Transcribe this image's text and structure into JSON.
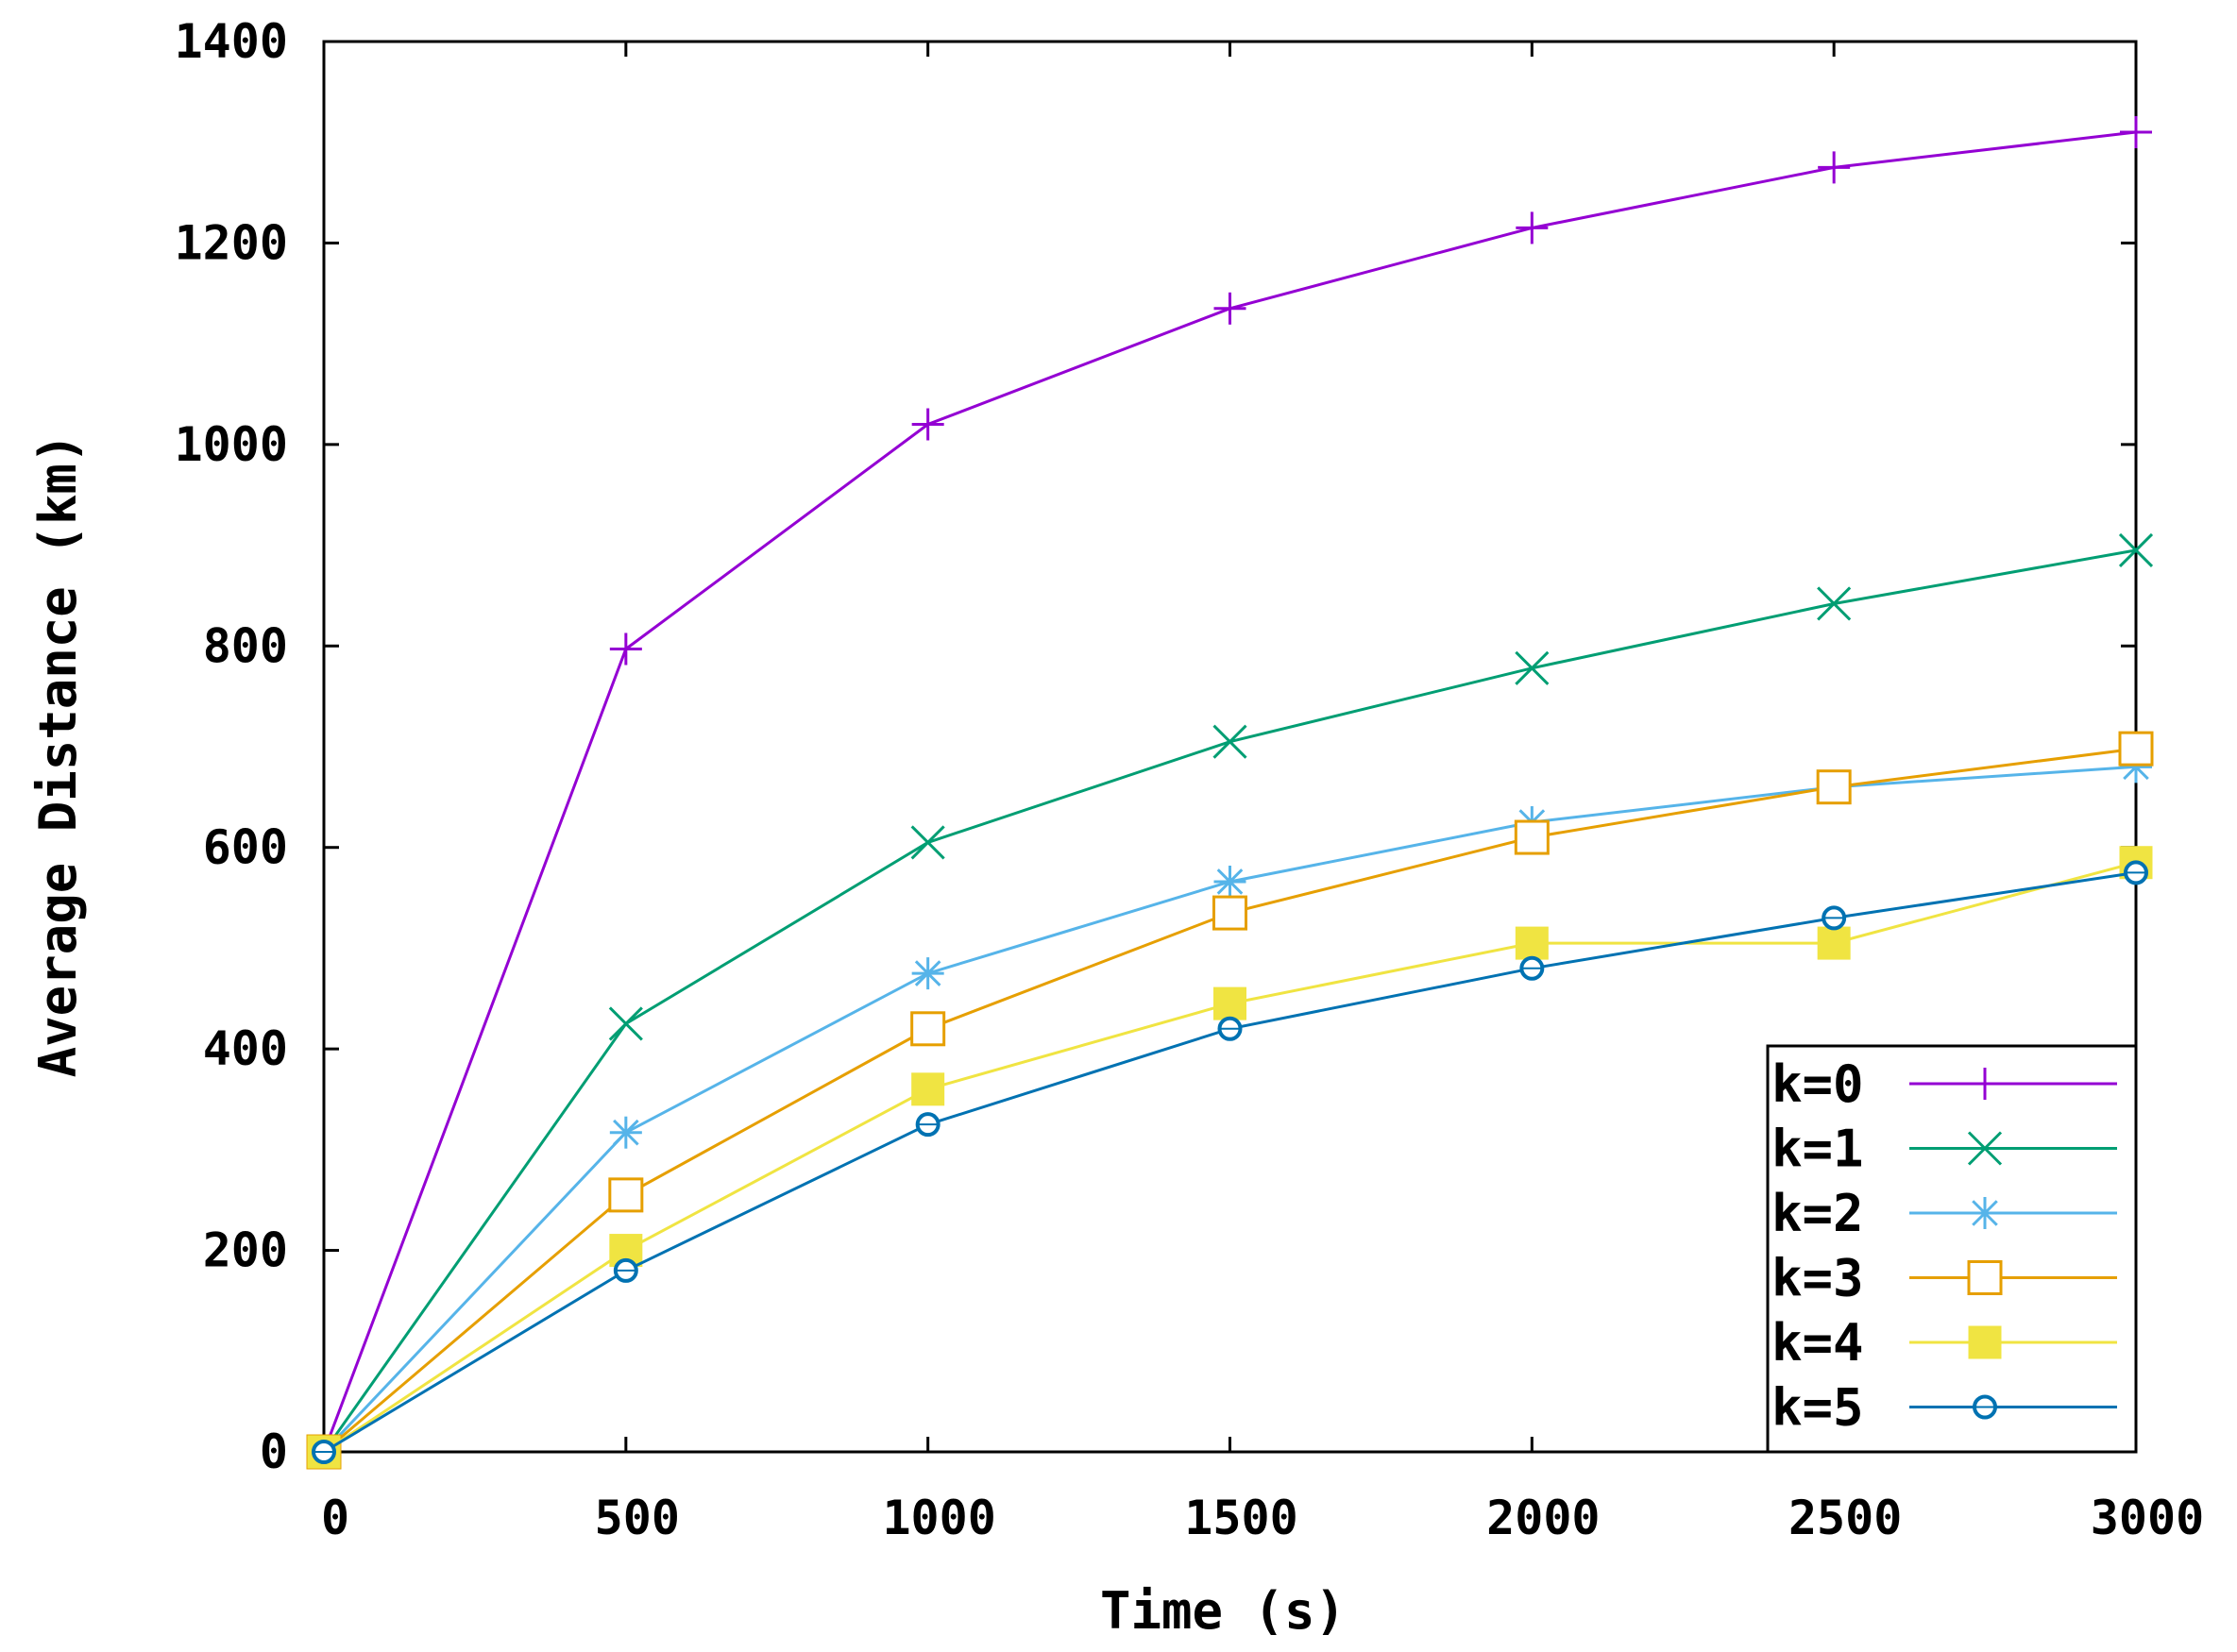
{
  "chart_data": {
    "type": "line",
    "title": "",
    "xlabel": "Time (s)",
    "ylabel": "Average Distance (km)",
    "xlim": [
      0,
      3000
    ],
    "ylim": [
      0,
      1400
    ],
    "xticks": [
      0,
      500,
      1000,
      1500,
      2000,
      2500,
      3000
    ],
    "yticks": [
      0,
      200,
      400,
      600,
      800,
      1000,
      1200,
      1400
    ],
    "xtick_labels": [
      "0",
      "500",
      "1000",
      "1500",
      "2000",
      "2500",
      "3000"
    ],
    "ytick_labels": [
      "0",
      "200",
      "400",
      "600",
      "800",
      "1000",
      "1200",
      "1400"
    ],
    "x": [
      0,
      500,
      1000,
      1500,
      2000,
      2500,
      3000
    ],
    "legend_position": "bottom-right",
    "grid": false,
    "series": [
      {
        "name": "k=0",
        "color": "#9400d3",
        "marker": "plus",
        "values": [
          0,
          797,
          1020,
          1135,
          1215,
          1275,
          1310
        ]
      },
      {
        "name": "k=1",
        "color": "#009e73",
        "marker": "cross",
        "values": [
          0,
          425,
          605,
          705,
          778,
          842,
          895
        ]
      },
      {
        "name": "k=2",
        "color": "#56b4e9",
        "marker": "star",
        "values": [
          0,
          317,
          475,
          566,
          625,
          660,
          680
        ]
      },
      {
        "name": "k=3",
        "color": "#e69f00",
        "marker": "square-open",
        "values": [
          0,
          255,
          420,
          535,
          610,
          660,
          698
        ]
      },
      {
        "name": "k=4",
        "color": "#f0e442",
        "marker": "square-filled",
        "values": [
          0,
          200,
          360,
          445,
          505,
          505,
          585
        ]
      },
      {
        "name": "k=5",
        "color": "#0072b2",
        "marker": "circle-open",
        "values": [
          0,
          180,
          325,
          420,
          480,
          530,
          575
        ]
      }
    ]
  }
}
